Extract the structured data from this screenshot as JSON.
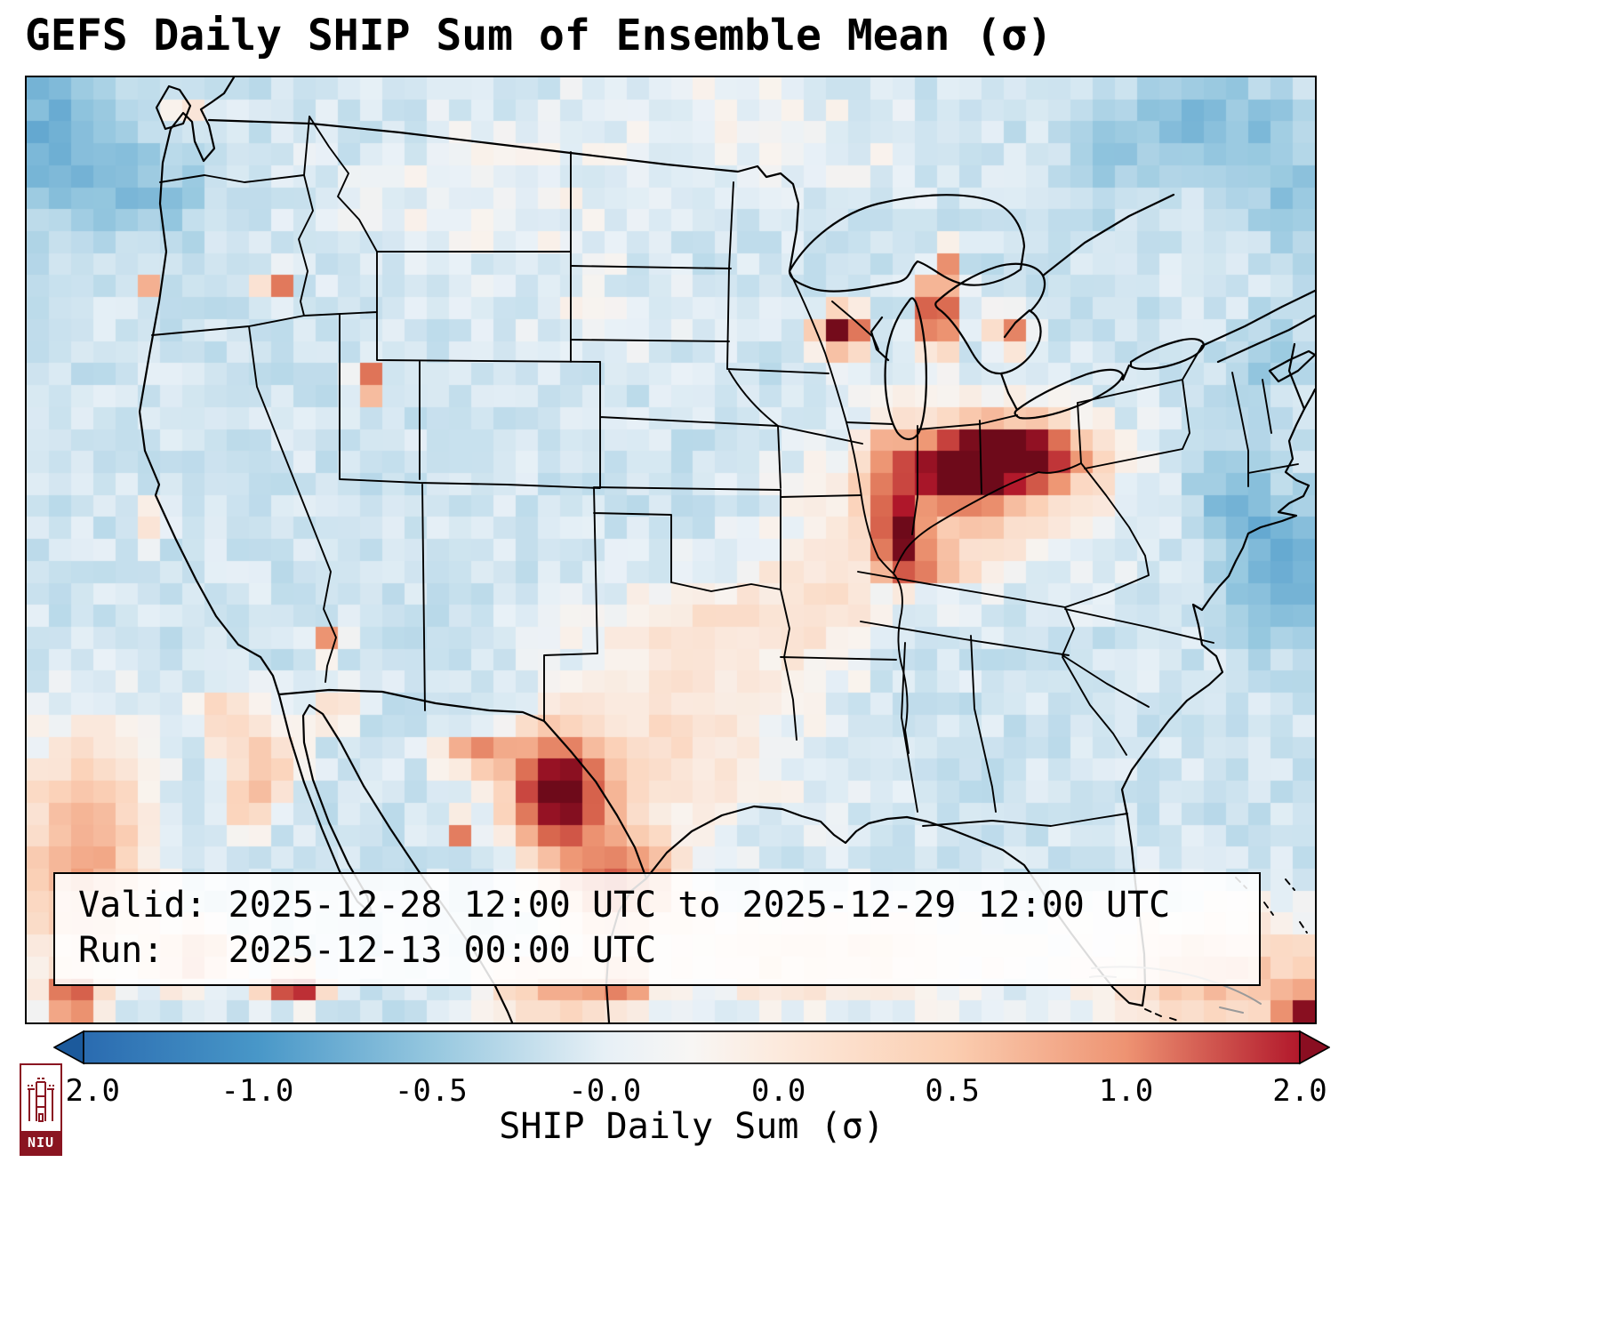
{
  "title": "GEFS Daily SHIP Sum of Ensemble Mean (σ)",
  "info_box": {
    "lines": [
      "Valid: 2025-12-28 12:00 UTC to 2025-12-29 12:00 UTC",
      "Run:   2025-12-13 00:00 UTC"
    ]
  },
  "logo": {
    "text": "NIU",
    "color": "#8a1521"
  },
  "chart_data": {
    "type": "heatmap",
    "title": "GEFS Daily SHIP Sum of Ensemble Mean (σ)",
    "subtitle": "",
    "projection": "North America (CONUS-centered), gridded ensemble-mean SHIP anomaly in standard deviations",
    "colorbar": {
      "label": "SHIP Daily Sum (σ)",
      "ticks": [
        "-2.0",
        "-1.0",
        "-0.5",
        "-0.0",
        "0.0",
        "0.5",
        "1.0",
        "2.0"
      ],
      "range": [
        -2.0,
        2.0
      ],
      "scale": "nonlinear, 7 equal segments between ticks",
      "gradient_stops": [
        [
          0.0,
          "#2a6bb0"
        ],
        [
          0.143,
          "#4897c8"
        ],
        [
          0.286,
          "#95c7df"
        ],
        [
          0.429,
          "#e7f0f6"
        ],
        [
          0.5,
          "#f8f6f4"
        ],
        [
          0.571,
          "#fceadd"
        ],
        [
          0.714,
          "#fbceb1"
        ],
        [
          0.857,
          "#ee9372"
        ],
        [
          1.0,
          "#b2182b"
        ]
      ],
      "under_arrow_color": "#1c5a9c",
      "over_arrow_color": "#8a0e21"
    },
    "value_color_stops": [
      [
        -2.6,
        "#16497f"
      ],
      [
        -2.0,
        "#2a6bb0"
      ],
      [
        -1.0,
        "#4897c8"
      ],
      [
        -0.5,
        "#95c7df"
      ],
      [
        -0.04,
        "#e9f1f7"
      ],
      [
        0.04,
        "#f9f3ee"
      ],
      [
        0.5,
        "#fbd3ba"
      ],
      [
        1.0,
        "#ef9a77"
      ],
      [
        1.5,
        "#da6a50"
      ],
      [
        2.0,
        "#b2182b"
      ],
      [
        2.6,
        "#6e0a1a"
      ]
    ],
    "grid": {
      "cols": 58,
      "rows": 43
    },
    "base_value": -0.18,
    "noise_amplitude": 0.13,
    "regions_note": "Hotspot blobs [x_frac, y_frac, rx, ry, peak_sigma]; positive = red (favorable SHIP), negative = blue",
    "regions": [
      [
        0.761,
        0.4,
        0.05,
        0.03,
        3.2
      ],
      [
        0.726,
        0.419,
        0.03,
        0.026,
        2.9
      ],
      [
        0.678,
        0.484,
        0.016,
        0.034,
        2.4
      ],
      [
        0.695,
        0.515,
        0.03,
        0.014,
        1.6
      ],
      [
        0.735,
        0.435,
        0.095,
        0.075,
        0.9
      ],
      [
        0.671,
        0.425,
        0.02,
        0.055,
        1.0
      ],
      [
        0.633,
        0.268,
        0.017,
        0.021,
        2.8
      ],
      [
        0.707,
        0.25,
        0.013,
        0.034,
        2.7
      ],
      [
        0.764,
        0.268,
        0.012,
        0.018,
        1.5
      ],
      [
        0.716,
        0.19,
        0.008,
        0.01,
        1.8
      ],
      [
        0.122,
        0.028,
        0.008,
        0.008,
        1.6
      ],
      [
        0.412,
        0.757,
        0.034,
        0.052,
        3.0
      ],
      [
        0.35,
        0.715,
        0.028,
        0.018,
        1.4
      ],
      [
        0.338,
        0.795,
        0.009,
        0.012,
        2.3
      ],
      [
        0.457,
        0.851,
        0.045,
        0.048,
        1.7
      ],
      [
        0.5,
        0.7,
        0.1,
        0.095,
        0.5
      ],
      [
        0.52,
        0.575,
        0.075,
        0.05,
        0.35
      ],
      [
        0.615,
        0.55,
        0.05,
        0.07,
        0.45
      ],
      [
        0.62,
        0.93,
        0.13,
        0.05,
        0.6
      ],
      [
        0.93,
        0.95,
        0.09,
        0.06,
        0.9
      ],
      [
        0.995,
        0.99,
        0.02,
        0.02,
        2.2
      ],
      [
        0.045,
        0.82,
        0.05,
        0.12,
        1.1
      ],
      [
        0.035,
        0.975,
        0.016,
        0.02,
        2.3
      ],
      [
        0.207,
        0.96,
        0.022,
        0.016,
        2.5
      ],
      [
        0.13,
        0.93,
        0.03,
        0.03,
        1.2
      ],
      [
        0.185,
        0.72,
        0.025,
        0.04,
        0.8
      ],
      [
        0.153,
        0.677,
        0.02,
        0.03,
        0.7
      ],
      [
        0.17,
        0.771,
        0.018,
        0.025,
        0.9
      ],
      [
        0.42,
        0.965,
        0.06,
        0.03,
        1.0
      ],
      [
        0.464,
        0.955,
        0.012,
        0.012,
        2.0
      ],
      [
        0.193,
        0.216,
        0.011,
        0.011,
        2.3
      ],
      [
        0.095,
        0.226,
        0.008,
        0.008,
        1.5
      ],
      [
        0.264,
        0.322,
        0.008,
        0.018,
        2.3
      ],
      [
        0.233,
        0.597,
        0.012,
        0.015,
        1.2
      ],
      [
        0.24,
        0.67,
        0.015,
        0.02,
        0.8
      ],
      [
        0.09,
        0.47,
        0.01,
        0.02,
        0.6
      ],
      [
        0.02,
        0.06,
        0.06,
        0.09,
        -0.55
      ],
      [
        0.1,
        0.13,
        0.05,
        0.05,
        -0.3
      ],
      [
        0.92,
        0.05,
        0.07,
        0.05,
        -0.45
      ],
      [
        0.84,
        0.1,
        0.04,
        0.04,
        -0.25
      ],
      [
        0.985,
        0.13,
        0.03,
        0.05,
        -0.4
      ],
      [
        0.975,
        0.52,
        0.04,
        0.07,
        -0.7
      ],
      [
        0.935,
        0.44,
        0.03,
        0.05,
        -0.45
      ],
      [
        0.96,
        0.3,
        0.03,
        0.04,
        -0.3
      ],
      [
        0.37,
        0.13,
        0.12,
        0.08,
        0.2
      ],
      [
        0.44,
        0.26,
        0.06,
        0.05,
        0.15
      ],
      [
        0.55,
        0.03,
        0.11,
        0.05,
        0.2
      ],
      [
        0.63,
        0.1,
        0.06,
        0.04,
        0.15
      ]
    ],
    "annotations": {
      "valid": "2025-12-28 12:00 UTC to 2025-12-29 12:00 UTC",
      "run": "2025-12-13 00:00 UTC"
    }
  }
}
